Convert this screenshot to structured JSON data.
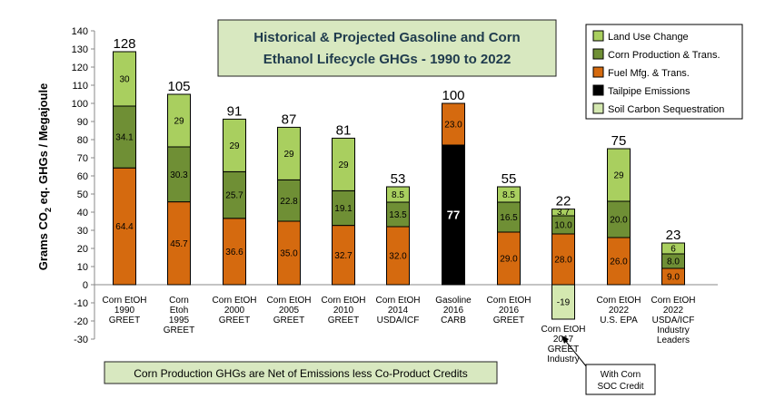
{
  "chart_data": {
    "type": "bar",
    "stacked": true,
    "title_lines": [
      "Historical & Projected Gasoline and Corn",
      "Ethanol Lifecycle GHGs - 1990 to 2022"
    ],
    "ylabel_main": "Grams CO",
    "ylabel_sub": "2",
    "ylabel_rest": " eq. GHGs / Megajoule",
    "ylim": [
      -30,
      140
    ],
    "yticks": [
      -30,
      -20,
      -10,
      0,
      10,
      20,
      30,
      40,
      50,
      60,
      70,
      80,
      90,
      100,
      110,
      120,
      130,
      140
    ],
    "grid": false,
    "legend_position": "top-right",
    "series": [
      {
        "name": "Land Use Change",
        "color": "#a9cf5f"
      },
      {
        "name": "Corn Production & Trans.",
        "color": "#6f8f35"
      },
      {
        "name": "Fuel Mfg. & Trans.",
        "color": "#d56a0f"
      },
      {
        "name": "Tailpipe Emissions",
        "color": "#000000"
      },
      {
        "name": "Soil Carbon Sequestration",
        "color": "#d4e8b0"
      }
    ],
    "bars": [
      {
        "label_lines": [
          "Corn EtOH",
          "1990",
          "GREET"
        ],
        "total": "128",
        "segments": [
          {
            "series": 2,
            "value": 64.4,
            "label": "64.4"
          },
          {
            "series": 1,
            "value": 34.1,
            "label": "34.1"
          },
          {
            "series": 0,
            "value": 30,
            "label": "30"
          }
        ]
      },
      {
        "label_lines": [
          "Corn",
          "Etoh",
          "1995",
          "GREET"
        ],
        "total": "105",
        "segments": [
          {
            "series": 2,
            "value": 45.7,
            "label": "45.7"
          },
          {
            "series": 1,
            "value": 30.3,
            "label": "30.3"
          },
          {
            "series": 0,
            "value": 29,
            "label": "29"
          }
        ]
      },
      {
        "label_lines": [
          "Corn EtOH",
          "2000",
          "GREET"
        ],
        "total": "91",
        "segments": [
          {
            "series": 2,
            "value": 36.6,
            "label": "36.6"
          },
          {
            "series": 1,
            "value": 25.7,
            "label": "25.7"
          },
          {
            "series": 0,
            "value": 29,
            "label": "29"
          }
        ]
      },
      {
        "label_lines": [
          "Corn EtOH",
          "2005",
          "GREET"
        ],
        "total": "87",
        "segments": [
          {
            "series": 2,
            "value": 35.0,
            "label": "35.0"
          },
          {
            "series": 1,
            "value": 22.8,
            "label": "22.8"
          },
          {
            "series": 0,
            "value": 29,
            "label": "29"
          }
        ]
      },
      {
        "label_lines": [
          "Corn EtOH",
          "2010",
          "GREET"
        ],
        "total": "81",
        "segments": [
          {
            "series": 2,
            "value": 32.7,
            "label": "32.7"
          },
          {
            "series": 1,
            "value": 19.1,
            "label": "19.1"
          },
          {
            "series": 0,
            "value": 29,
            "label": "29"
          }
        ]
      },
      {
        "label_lines": [
          "Corn EtOH",
          "2014",
          "USDA/ICF"
        ],
        "total": "53",
        "segments": [
          {
            "series": 2,
            "value": 32.0,
            "label": "32.0"
          },
          {
            "series": 1,
            "value": 13.5,
            "label": "13.5"
          },
          {
            "series": 0,
            "value": 8.5,
            "label": "8.5"
          }
        ]
      },
      {
        "label_lines": [
          "Gasoline",
          "2016",
          "CARB"
        ],
        "total": "100",
        "segments": [
          {
            "series": 3,
            "value": 77,
            "label": "77"
          },
          {
            "series": 2,
            "value": 23.0,
            "label": "23.0"
          }
        ]
      },
      {
        "label_lines": [
          "Corn EtOH",
          "2016",
          "GREET"
        ],
        "total": "55",
        "segments": [
          {
            "series": 2,
            "value": 29.0,
            "label": "29.0"
          },
          {
            "series": 1,
            "value": 16.5,
            "label": "16.5"
          },
          {
            "series": 0,
            "value": 8.5,
            "label": "8.5"
          }
        ]
      },
      {
        "label_lines": [
          "Corn EtOH",
          "2017",
          "GREET",
          "Industry"
        ],
        "total": "22",
        "segments": [
          {
            "series": 2,
            "value": 28.0,
            "label": "28.0"
          },
          {
            "series": 1,
            "value": 10.0,
            "label": "10.0"
          },
          {
            "series": 0,
            "value": 3.7,
            "label": "3.7"
          },
          {
            "series": 4,
            "value": -19,
            "label": "-19"
          }
        ]
      },
      {
        "label_lines": [
          "Corn EtOH",
          "2022",
          "U.S. EPA"
        ],
        "total": "75",
        "segments": [
          {
            "series": 2,
            "value": 26.0,
            "label": "26.0"
          },
          {
            "series": 1,
            "value": 20.0,
            "label": "20.0"
          },
          {
            "series": 0,
            "value": 29,
            "label": "29"
          }
        ]
      },
      {
        "label_lines": [
          "Corn EtOH",
          "2022",
          "USDA/ICF",
          "Industry",
          "Leaders"
        ],
        "total": "23",
        "segments": [
          {
            "series": 2,
            "value": 9.0,
            "label": "9.0"
          },
          {
            "series": 1,
            "value": 8.0,
            "label": "8.0"
          },
          {
            "series": 0,
            "value": 6,
            "label": "6"
          }
        ]
      }
    ],
    "note": "Corn Production GHGs are Net of Emissions less Co-Product Credits",
    "callout_lines": [
      "With Corn",
      "SOC Credit"
    ]
  }
}
